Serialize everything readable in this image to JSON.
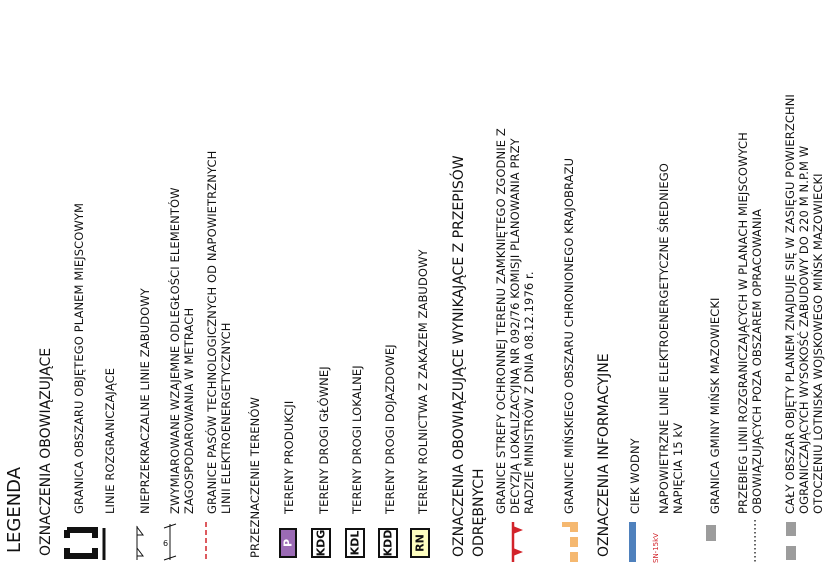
{
  "legend": {
    "title": "LEGENDA",
    "obligatory": {
      "heading": "OZNACZENIA OBOWIĄZUJĄCE",
      "items": [
        {
          "icon": "plan-boundary-bracket-icon",
          "text": "GRANICA OBSZARU OBJĘTEGO PLANEM MIEJSCOWYM"
        },
        {
          "icon": "solid-line-icon",
          "text": "LINIE ROZGRANICZAJĄCE"
        },
        {
          "icon": "building-line-icon",
          "text": "NIEPRZEKRACZALNE LINIE ZABUDOWY"
        },
        {
          "icon": "dimension-line-icon",
          "lines": [
            "ZWYMIAROWANE WZAJEMNE ODLEGŁOŚCI ELEMENTÓW",
            "ZAGOSPODAROWANIA W METRACH"
          ]
        },
        {
          "icon": "dashed-red-line-icon",
          "lines": [
            "GRANICE PASÓW TECHNOLOGICZNYCH OD NAPOWIETRZNYCH",
            "LINII ELEKTROENERGETYCZNYCH"
          ]
        }
      ],
      "land_use_heading": "PRZEZNACZENIE TERENÓW",
      "land_use": [
        {
          "code": "P",
          "label": "TERENY PRODUKCJI",
          "fill": "#9b6bb5",
          "text_color": "#ffffff"
        },
        {
          "code": "KDG",
          "label": "TERENY DROGI GŁÓWNEJ",
          "fill": "#ffffff",
          "text_color": "#111111"
        },
        {
          "code": "KDL",
          "label": "TERENY DROGI LOKALNEJ",
          "fill": "#ffffff",
          "text_color": "#111111"
        },
        {
          "code": "KDD",
          "label": "TERENY DROGI DOJAZDOWEJ",
          "fill": "#ffffff",
          "text_color": "#111111"
        },
        {
          "code": "RN",
          "label": "TERENY ROLNICTWA  Z ZAKAZEM ZABUDOWY",
          "fill": "#ffffc0",
          "text_color": "#111111"
        }
      ]
    },
    "regulatory": {
      "heading_lines": [
        "OZNACZENIA OBOWIĄZUJĄCE WYNIKAJĄCE Z PRZEPISÓW",
        "ODRĘBNYCH"
      ],
      "items": [
        {
          "icon": "red-triangle-line-icon",
          "lines": [
            "GRANICE STREFY OCHRONNEJ TERENU ZAMKNIĘTEGO ZGODNIE Z",
            "DECYZJĄ LOKALIZACYJNĄ NR 092/76 KOMISJI PLANOWANIA PRZY",
            "RADZIE MINISTRÓW Z DNIA 08.12.1976 r."
          ]
        },
        {
          "icon": "orange-dashed-boundary-icon",
          "text": "GRANICE MIŃSKIEGO OBSZARU CHRONIONEGO KRAJOBRAZU"
        }
      ]
    },
    "informational": {
      "heading": "OZNACZENIA INFORMACYJNE",
      "items": [
        {
          "icon": "watercourse-icon",
          "text": "CIEK WODNY"
        },
        {
          "icon": "power-line-icon",
          "symbol_text": "SN-15kV",
          "lines": [
            "NAPOWIETRZNE LINIE ELEKTROENERGETYCZNE ŚREDNIEGO",
            "NAPIĘCIA 15 kV"
          ]
        },
        {
          "icon": "gray-dash-icon",
          "text": "GRANICA GMINY MIŃSK MAZOWIECKI"
        },
        {
          "icon": "dotted-line-icon",
          "lines": [
            "PRZEBIEG LINII ROZGRANICZAJĄCYCH W PLANACH MIEJSCOWYCH",
            "OBOWIĄZUJĄCYCH POZA OBSZAREM OPRACOWANIA"
          ]
        },
        {
          "icon": "gray-dash-icon",
          "lines": [
            "CAŁY OBSZAR OBJĘTY PLANEM ZNAJDUJE SIĘ W ZASIĘGU POWIERZCHNI",
            "OGRANICZAJĄCYCH  WYSOKOŚĆ  ZABUDOWY  DO  220  M  N.P.M  W",
            "OTOCZENIU LOTNISKA WOJSKOWEGO MIŃSK MAZOWIECKI"
          ]
        }
      ]
    }
  },
  "colors": {
    "red": "#d2232a",
    "orange": "#f5b870",
    "blue": "#4f81bd",
    "gray": "#9c9c9c",
    "purple": "#9b6bb5",
    "yellow": "#ffffc0"
  }
}
